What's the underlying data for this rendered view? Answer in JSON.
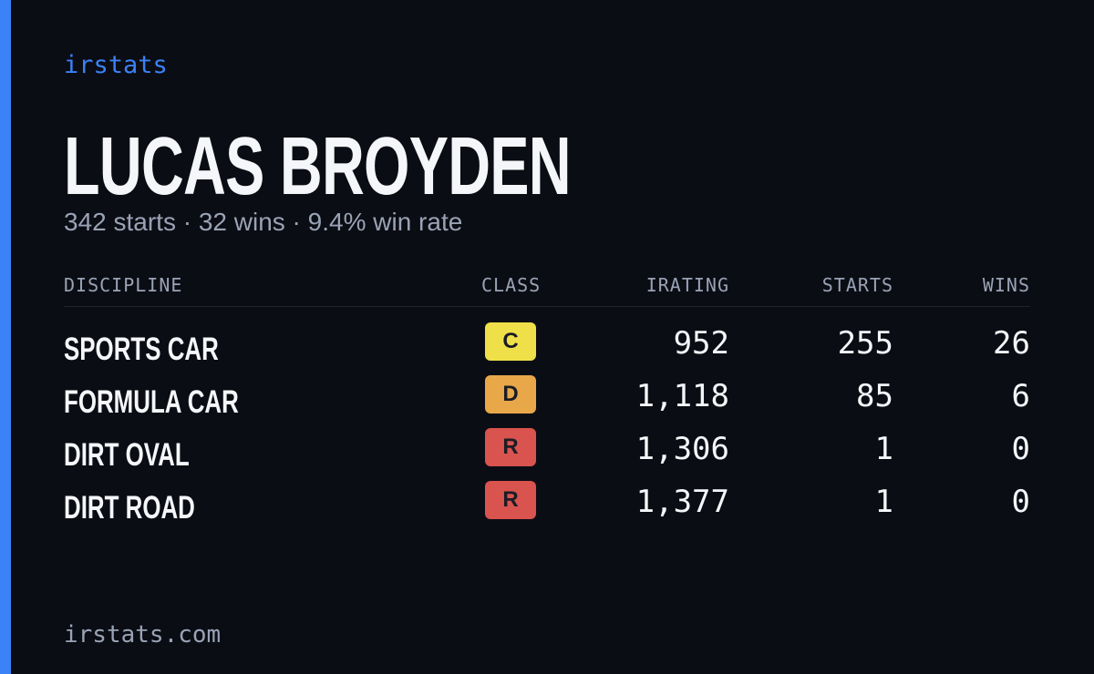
{
  "brand": "irstats",
  "profile": {
    "name": "LUCAS BROYDEN",
    "summary": "342 starts · 32 wins · 9.4% win rate"
  },
  "table": {
    "headers": [
      "DISCIPLINE",
      "CLASS",
      "IRATING",
      "STARTS",
      "WINS"
    ],
    "rows": [
      [
        "SPORTS CAR",
        "C",
        "952",
        "255",
        "26"
      ],
      [
        "FORMULA CAR",
        "D",
        "1,118",
        "85",
        "6"
      ],
      [
        "DIRT OVAL",
        "R",
        "1,306",
        "1",
        "0"
      ],
      [
        "DIRT ROAD",
        "R",
        "1,377",
        "1",
        "0"
      ]
    ],
    "badge_colors": [
      "#efe04a",
      "#e8a84a",
      "#d9534f",
      "#d9534f"
    ]
  },
  "footer": "irstats.com"
}
